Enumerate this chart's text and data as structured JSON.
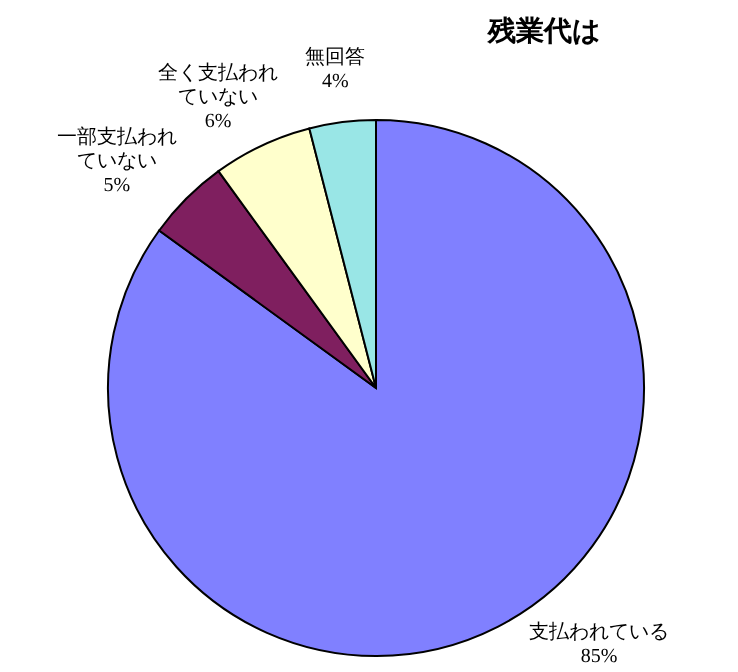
{
  "chart_data": {
    "type": "pie",
    "title": "残業代は",
    "categories": [
      "支払われている",
      "一部支払われていない",
      "全く支払われていない",
      "無回答"
    ],
    "values": [
      85,
      5,
      6,
      4
    ],
    "value_labels": [
      "85%",
      "5%",
      "6%",
      "4%"
    ],
    "colors": [
      "#8080ff",
      "#7f1f5f",
      "#ffffcc",
      "#99e6e6"
    ]
  }
}
